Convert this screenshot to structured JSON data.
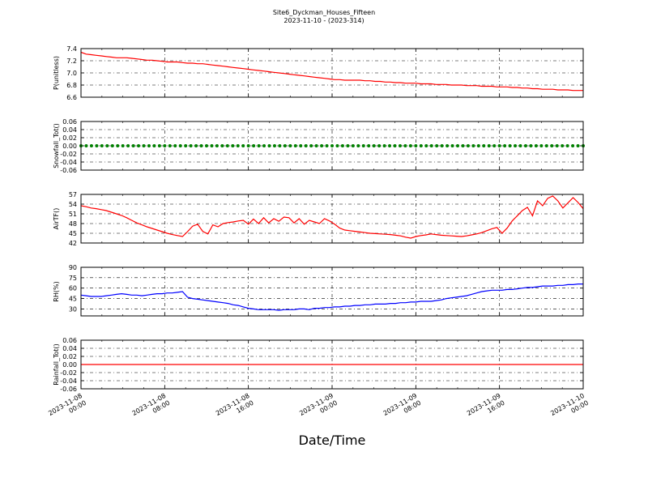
{
  "figure": {
    "title": "Site6_Dyckman_Houses_Fifteen",
    "subtitle": "2023-11-10 - (2023-314)",
    "xlabel": "Date/Time"
  },
  "chart_data": [
    {
      "type": "line",
      "ylabel": "P(unitless)",
      "ylim": [
        6.6,
        7.4
      ],
      "yticks": [
        "7.4",
        "7.2",
        "7.0",
        "6.8",
        "6.6"
      ],
      "grid": true,
      "color": "#ff0000",
      "x_start": "2023-11-08 00:00",
      "x_end": "2023-11-10 00:00",
      "x_step_hours": 0.5,
      "values": [
        7.34,
        7.31,
        7.3,
        7.29,
        7.28,
        7.27,
        7.26,
        7.25,
        7.25,
        7.25,
        7.24,
        7.23,
        7.22,
        7.21,
        7.21,
        7.2,
        7.19,
        7.18,
        7.18,
        7.18,
        7.17,
        7.16,
        7.16,
        7.15,
        7.15,
        7.14,
        7.13,
        7.12,
        7.11,
        7.1,
        7.09,
        7.08,
        7.07,
        7.06,
        7.05,
        7.04,
        7.03,
        7.02,
        7.01,
        7.0,
        6.99,
        6.98,
        6.97,
        6.96,
        6.95,
        6.94,
        6.93,
        6.92,
        6.91,
        6.9,
        6.89,
        6.89,
        6.88,
        6.88,
        6.88,
        6.88,
        6.87,
        6.87,
        6.86,
        6.86,
        6.85,
        6.85,
        6.84,
        6.84,
        6.83,
        6.83,
        6.83,
        6.82,
        6.82,
        6.82,
        6.81,
        6.81,
        6.81,
        6.8,
        6.8,
        6.8,
        6.79,
        6.79,
        6.79,
        6.78,
        6.78,
        6.78,
        6.77,
        6.77,
        6.77,
        6.76,
        6.76,
        6.75,
        6.75,
        6.74,
        6.74,
        6.73,
        6.73,
        6.73,
        6.72,
        6.72,
        6.72,
        6.71,
        6.71,
        6.71
      ]
    },
    {
      "type": "scatter",
      "ylabel": "Snowfall_Tot()",
      "ylim": [
        -0.06,
        0.06
      ],
      "yticks": [
        "0.06",
        "0.04",
        "0.02",
        "0.00",
        "-0.02",
        "-0.04",
        "-0.06"
      ],
      "grid": true,
      "color": "#008000",
      "x_start": "2023-11-08 00:00",
      "x_end": "2023-11-10 00:00",
      "constant_value": 0.0
    },
    {
      "type": "line",
      "ylabel": "AirTF()",
      "ylim": [
        42,
        57
      ],
      "yticks": [
        "57",
        "54",
        "51",
        "48",
        "45",
        "42"
      ],
      "grid": true,
      "color": "#ff0000",
      "x_start": "2023-11-08 00:00",
      "x_end": "2023-11-10 00:00",
      "x_step_hours": 0.5,
      "values": [
        53.5,
        53.2,
        52.8,
        52.6,
        52.3,
        52.0,
        51.5,
        51.0,
        50.5,
        49.8,
        49.0,
        48.2,
        47.6,
        47.0,
        46.5,
        46.0,
        45.5,
        45.0,
        44.6,
        44.3,
        44.0,
        45.5,
        47.2,
        47.8,
        45.6,
        44.8,
        47.6,
        47.0,
        48.0,
        48.3,
        48.5,
        48.8,
        49.0,
        47.8,
        49.4,
        48.0,
        49.8,
        48.2,
        49.5,
        48.7,
        50.0,
        49.8,
        48.2,
        49.5,
        47.8,
        49.0,
        48.5,
        48.0,
        49.5,
        48.8,
        47.8,
        46.6,
        46.0,
        45.8,
        45.6,
        45.4,
        45.2,
        45.0,
        44.9,
        44.8,
        44.7,
        44.6,
        44.4,
        44.2,
        43.8,
        43.5,
        44.0,
        44.3,
        44.5,
        44.8,
        44.6,
        44.4,
        44.3,
        44.2,
        44.1,
        44.0,
        44.2,
        44.5,
        44.8,
        45.2,
        45.8,
        46.4,
        46.8,
        45.0,
        46.6,
        48.8,
        50.4,
        52.0,
        53.0,
        50.4,
        55.0,
        53.5,
        55.8,
        56.5,
        55.0,
        52.8,
        54.4,
        56.0,
        54.5,
        52.6
      ]
    },
    {
      "type": "line",
      "ylabel": "RH(%)",
      "ylim": [
        20,
        90
      ],
      "yticks": [
        "90",
        "75",
        "60",
        "45",
        "30"
      ],
      "grid": true,
      "color": "#0000ff",
      "x_start": "2023-11-08 00:00",
      "x_end": "2023-11-10 00:00",
      "x_step_hours": 0.5,
      "values": [
        50,
        49,
        48,
        48,
        48,
        49,
        50,
        51,
        52,
        51,
        50,
        50,
        49,
        50,
        51,
        52,
        52,
        53,
        53,
        54,
        55,
        47,
        45,
        44,
        43,
        42,
        41,
        40,
        39,
        38,
        36,
        35,
        33,
        31,
        30,
        29,
        29,
        29,
        29,
        28,
        29,
        29,
        29,
        30,
        30,
        29,
        31,
        31,
        32,
        32,
        33,
        33,
        34,
        34,
        35,
        35,
        36,
        36,
        37,
        37,
        37,
        38,
        38,
        39,
        39,
        40,
        40,
        41,
        41,
        41,
        42,
        43,
        45,
        46,
        47,
        48,
        49,
        51,
        53,
        55,
        56,
        57,
        57,
        57,
        58,
        58,
        59,
        60,
        61,
        61,
        62,
        63,
        63,
        63,
        64,
        64,
        65,
        65,
        66,
        66
      ]
    },
    {
      "type": "line",
      "ylabel": "Rainfall_Tot()",
      "ylim": [
        -0.06,
        0.06
      ],
      "yticks": [
        "0.06",
        "0.04",
        "0.02",
        "0.00",
        "-0.02",
        "-0.04",
        "-0.06"
      ],
      "grid": true,
      "color": "#ff0000",
      "x_start": "2023-11-08 00:00",
      "x_end": "2023-11-10 00:00",
      "constant_value": 0.0
    }
  ],
  "x_ticks": [
    {
      "line1": "2023-11-08",
      "line2": "00:00"
    },
    {
      "line1": "2023-11-08",
      "line2": "08:00"
    },
    {
      "line1": "2023-11-08",
      "line2": "16:00"
    },
    {
      "line1": "2023-11-09",
      "line2": "00:00"
    },
    {
      "line1": "2023-11-09",
      "line2": "08:00"
    },
    {
      "line1": "2023-11-09",
      "line2": "16:00"
    },
    {
      "line1": "2023-11-10",
      "line2": "00:00"
    }
  ]
}
